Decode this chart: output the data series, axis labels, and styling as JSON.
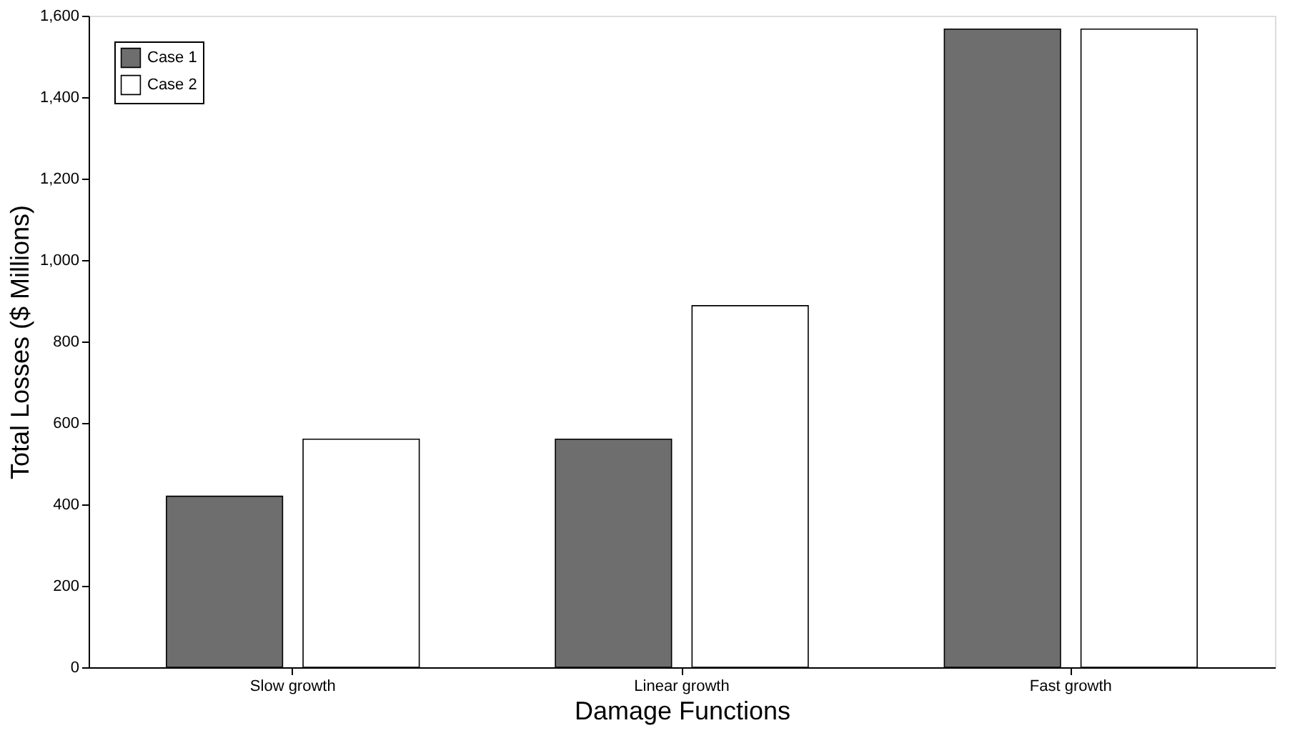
{
  "chart_data": {
    "type": "bar",
    "xlabel": "Damage Functions",
    "ylabel": "Total Losses ($ Millions)",
    "categories": [
      "Slow growth",
      "Linear growth",
      "Fast growth"
    ],
    "series": [
      {
        "name": "Case 1",
        "color": "#6e6e6e",
        "values": [
          420,
          560,
          1567
        ]
      },
      {
        "name": "Case 2",
        "color": "#ffffff",
        "values": [
          560,
          888,
          1567
        ]
      }
    ],
    "ylim": [
      0,
      1600
    ],
    "yticks": [
      0,
      200,
      400,
      600,
      800,
      {
        "value": 1000,
        "label": "1,000"
      },
      {
        "value": 1200,
        "label": "1,200"
      },
      {
        "value": 1400,
        "label": "1,400"
      },
      {
        "value": 1600,
        "label": "1,600"
      }
    ],
    "grid": false,
    "legend": "top left"
  }
}
